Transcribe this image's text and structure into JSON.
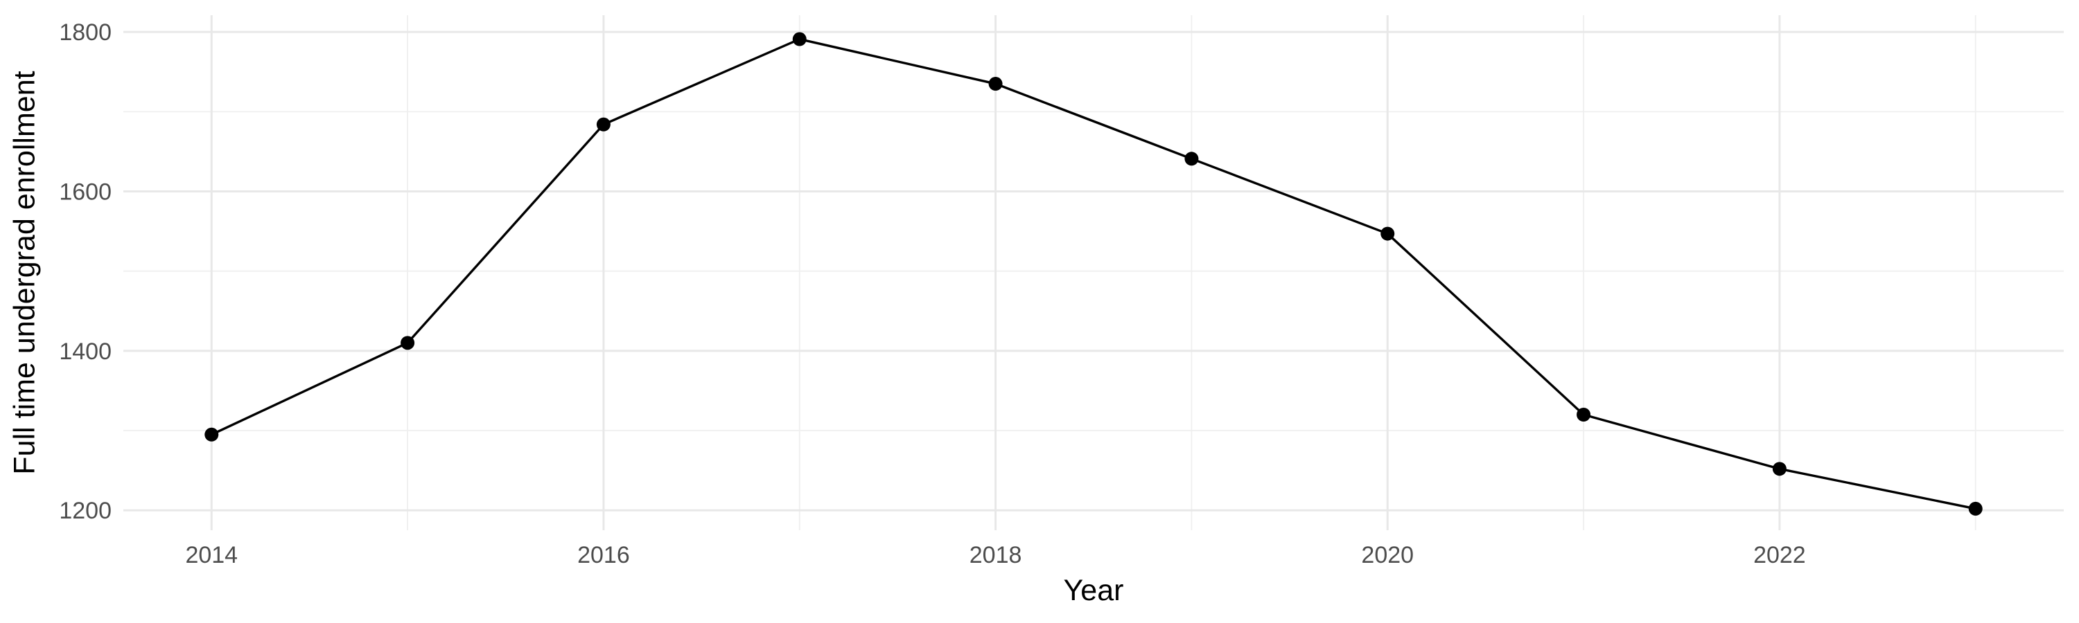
{
  "chart_data": {
    "type": "line",
    "title": "",
    "xlabel": "Year",
    "ylabel": "Full time undergrad enrollment",
    "x": [
      2014,
      2015,
      2016,
      2017,
      2018,
      2019,
      2020,
      2021,
      2022,
      2023
    ],
    "series": [
      {
        "name": "Full time undergrad enrollment",
        "values": [
          1295,
          1410,
          1684,
          1791,
          1735,
          1641,
          1547,
          1320,
          1252,
          1202
        ]
      }
    ],
    "x_ticks": {
      "values": [
        2014,
        2016,
        2018,
        2020,
        2022
      ],
      "labels": [
        "2014",
        "2016",
        "2018",
        "2020",
        "2022"
      ]
    },
    "y_ticks": {
      "values": [
        1200,
        1400,
        1600,
        1800
      ],
      "labels": [
        "1200",
        "1400",
        "1600",
        "1800"
      ]
    },
    "x_minor": [
      2015,
      2017,
      2019,
      2021,
      2023
    ],
    "y_minor": [
      1300,
      1500,
      1700
    ],
    "xlim": [
      2013.55,
      2023.45
    ],
    "ylim": [
      1175,
      1821
    ],
    "grid": true,
    "legend": "none",
    "marker": "circle",
    "colors": {
      "line": "#000000",
      "point": "#000000",
      "grid_major": "#e8e8e8",
      "grid_minor": "#efefef",
      "tick_label": "#4d4d4d",
      "axis_title": "#000000",
      "background": "#ffffff"
    }
  }
}
